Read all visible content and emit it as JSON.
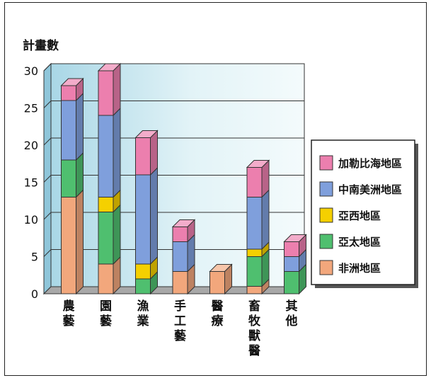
{
  "chart_data": {
    "type": "bar",
    "stacked": true,
    "three_d": true,
    "ylabel": "計畫數",
    "xlabel": "",
    "ylim": [
      0,
      30
    ],
    "yticks": [
      0,
      5,
      10,
      15,
      20,
      25,
      30
    ],
    "grid": true,
    "legend_position": "right",
    "categories": [
      "農藝",
      "園藝",
      "漁業",
      "手工藝",
      "醫療",
      "畜牧獸醫",
      "其他"
    ],
    "series": [
      {
        "name": "非洲地區",
        "color": "#f2a77c",
        "values": [
          13,
          4,
          0,
          3,
          3,
          1,
          0
        ]
      },
      {
        "name": "亞太地區",
        "color": "#4fbf6f",
        "values": [
          5,
          7,
          2,
          0,
          0,
          4,
          3
        ]
      },
      {
        "name": "亞西地區",
        "color": "#f5d000",
        "values": [
          0,
          2,
          2,
          0,
          0,
          1,
          0
        ]
      },
      {
        "name": "中南美洲地區",
        "color": "#7f9fdc",
        "values": [
          8,
          11,
          12,
          4,
          0,
          7,
          2
        ]
      },
      {
        "name": "加勒比海地區",
        "color": "#ec7fae",
        "values": [
          2,
          6,
          5,
          2,
          0,
          4,
          2
        ]
      }
    ],
    "legend_order": [
      "加勒比海地區",
      "中南美洲地區",
      "亞西地區",
      "亞太地區",
      "非洲地區"
    ]
  }
}
